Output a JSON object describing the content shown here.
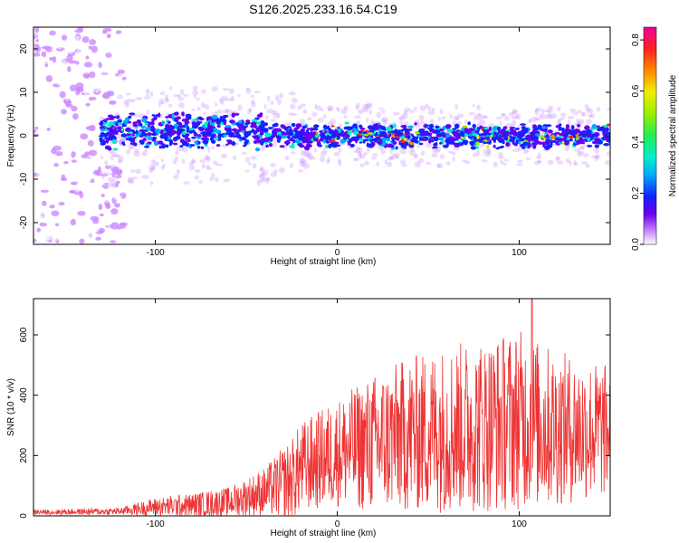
{
  "title": "S126.2025.233.16.54.C19",
  "chart_data": [
    {
      "type": "heatmap",
      "name": "spectrogram",
      "xlabel": "Height of straight line (km)",
      "ylabel": "Frequency (Hz)",
      "xlim": [
        -167,
        150
      ],
      "ylim": [
        -25,
        25
      ],
      "xticks": [
        -100,
        0,
        100
      ],
      "yticks": [
        -20,
        -10,
        0,
        10,
        20
      ],
      "colorbar": {
        "label": "Normalized spectral amplitude",
        "range": [
          0.0,
          0.85
        ],
        "ticks": [
          "0.0",
          "0.2",
          "0.4",
          "0.6",
          "0.8"
        ],
        "tick_values": [
          0.0,
          0.2,
          0.4,
          0.6,
          0.8
        ]
      },
      "description_bands": [
        {
          "x_range": [
            -167,
            -117
          ],
          "freq_spread": 25,
          "amplitude": 0.05
        },
        {
          "x_range": [
            -130,
            150
          ],
          "freq_center": 0,
          "freq_halfwidth": 4,
          "amplitude": 0.25
        }
      ]
    },
    {
      "type": "line",
      "name": "snr",
      "xlabel": "Height of straight line (km)",
      "ylabel": "SNR (10 * v/v)",
      "xlim": [
        -167,
        150
      ],
      "ylim": [
        0,
        720
      ],
      "xticks": [
        -100,
        0,
        100
      ],
      "yticks": [
        0,
        200,
        400,
        600
      ],
      "color": "#ee3333",
      "envelope": [
        {
          "x": -167,
          "mean": 12,
          "spread": 8
        },
        {
          "x": -120,
          "mean": 15,
          "spread": 12
        },
        {
          "x": -100,
          "mean": 30,
          "spread": 30
        },
        {
          "x": -80,
          "mean": 35,
          "spread": 40
        },
        {
          "x": -60,
          "mean": 45,
          "spread": 50
        },
        {
          "x": -40,
          "mean": 80,
          "spread": 80
        },
        {
          "x": -25,
          "mean": 120,
          "spread": 140
        },
        {
          "x": -20,
          "mean": 160,
          "spread": 150
        },
        {
          "x": 0,
          "mean": 210,
          "spread": 180
        },
        {
          "x": 20,
          "mean": 240,
          "spread": 230
        },
        {
          "x": 40,
          "mean": 270,
          "spread": 260
        },
        {
          "x": 60,
          "mean": 290,
          "spread": 280
        },
        {
          "x": 80,
          "mean": 300,
          "spread": 290
        },
        {
          "x": 100,
          "mean": 320,
          "spread": 300
        },
        {
          "x": 120,
          "mean": 290,
          "spread": 260
        },
        {
          "x": 150,
          "mean": 280,
          "spread": 220
        }
      ],
      "peak": {
        "x": 107,
        "y": 720
      }
    }
  ]
}
